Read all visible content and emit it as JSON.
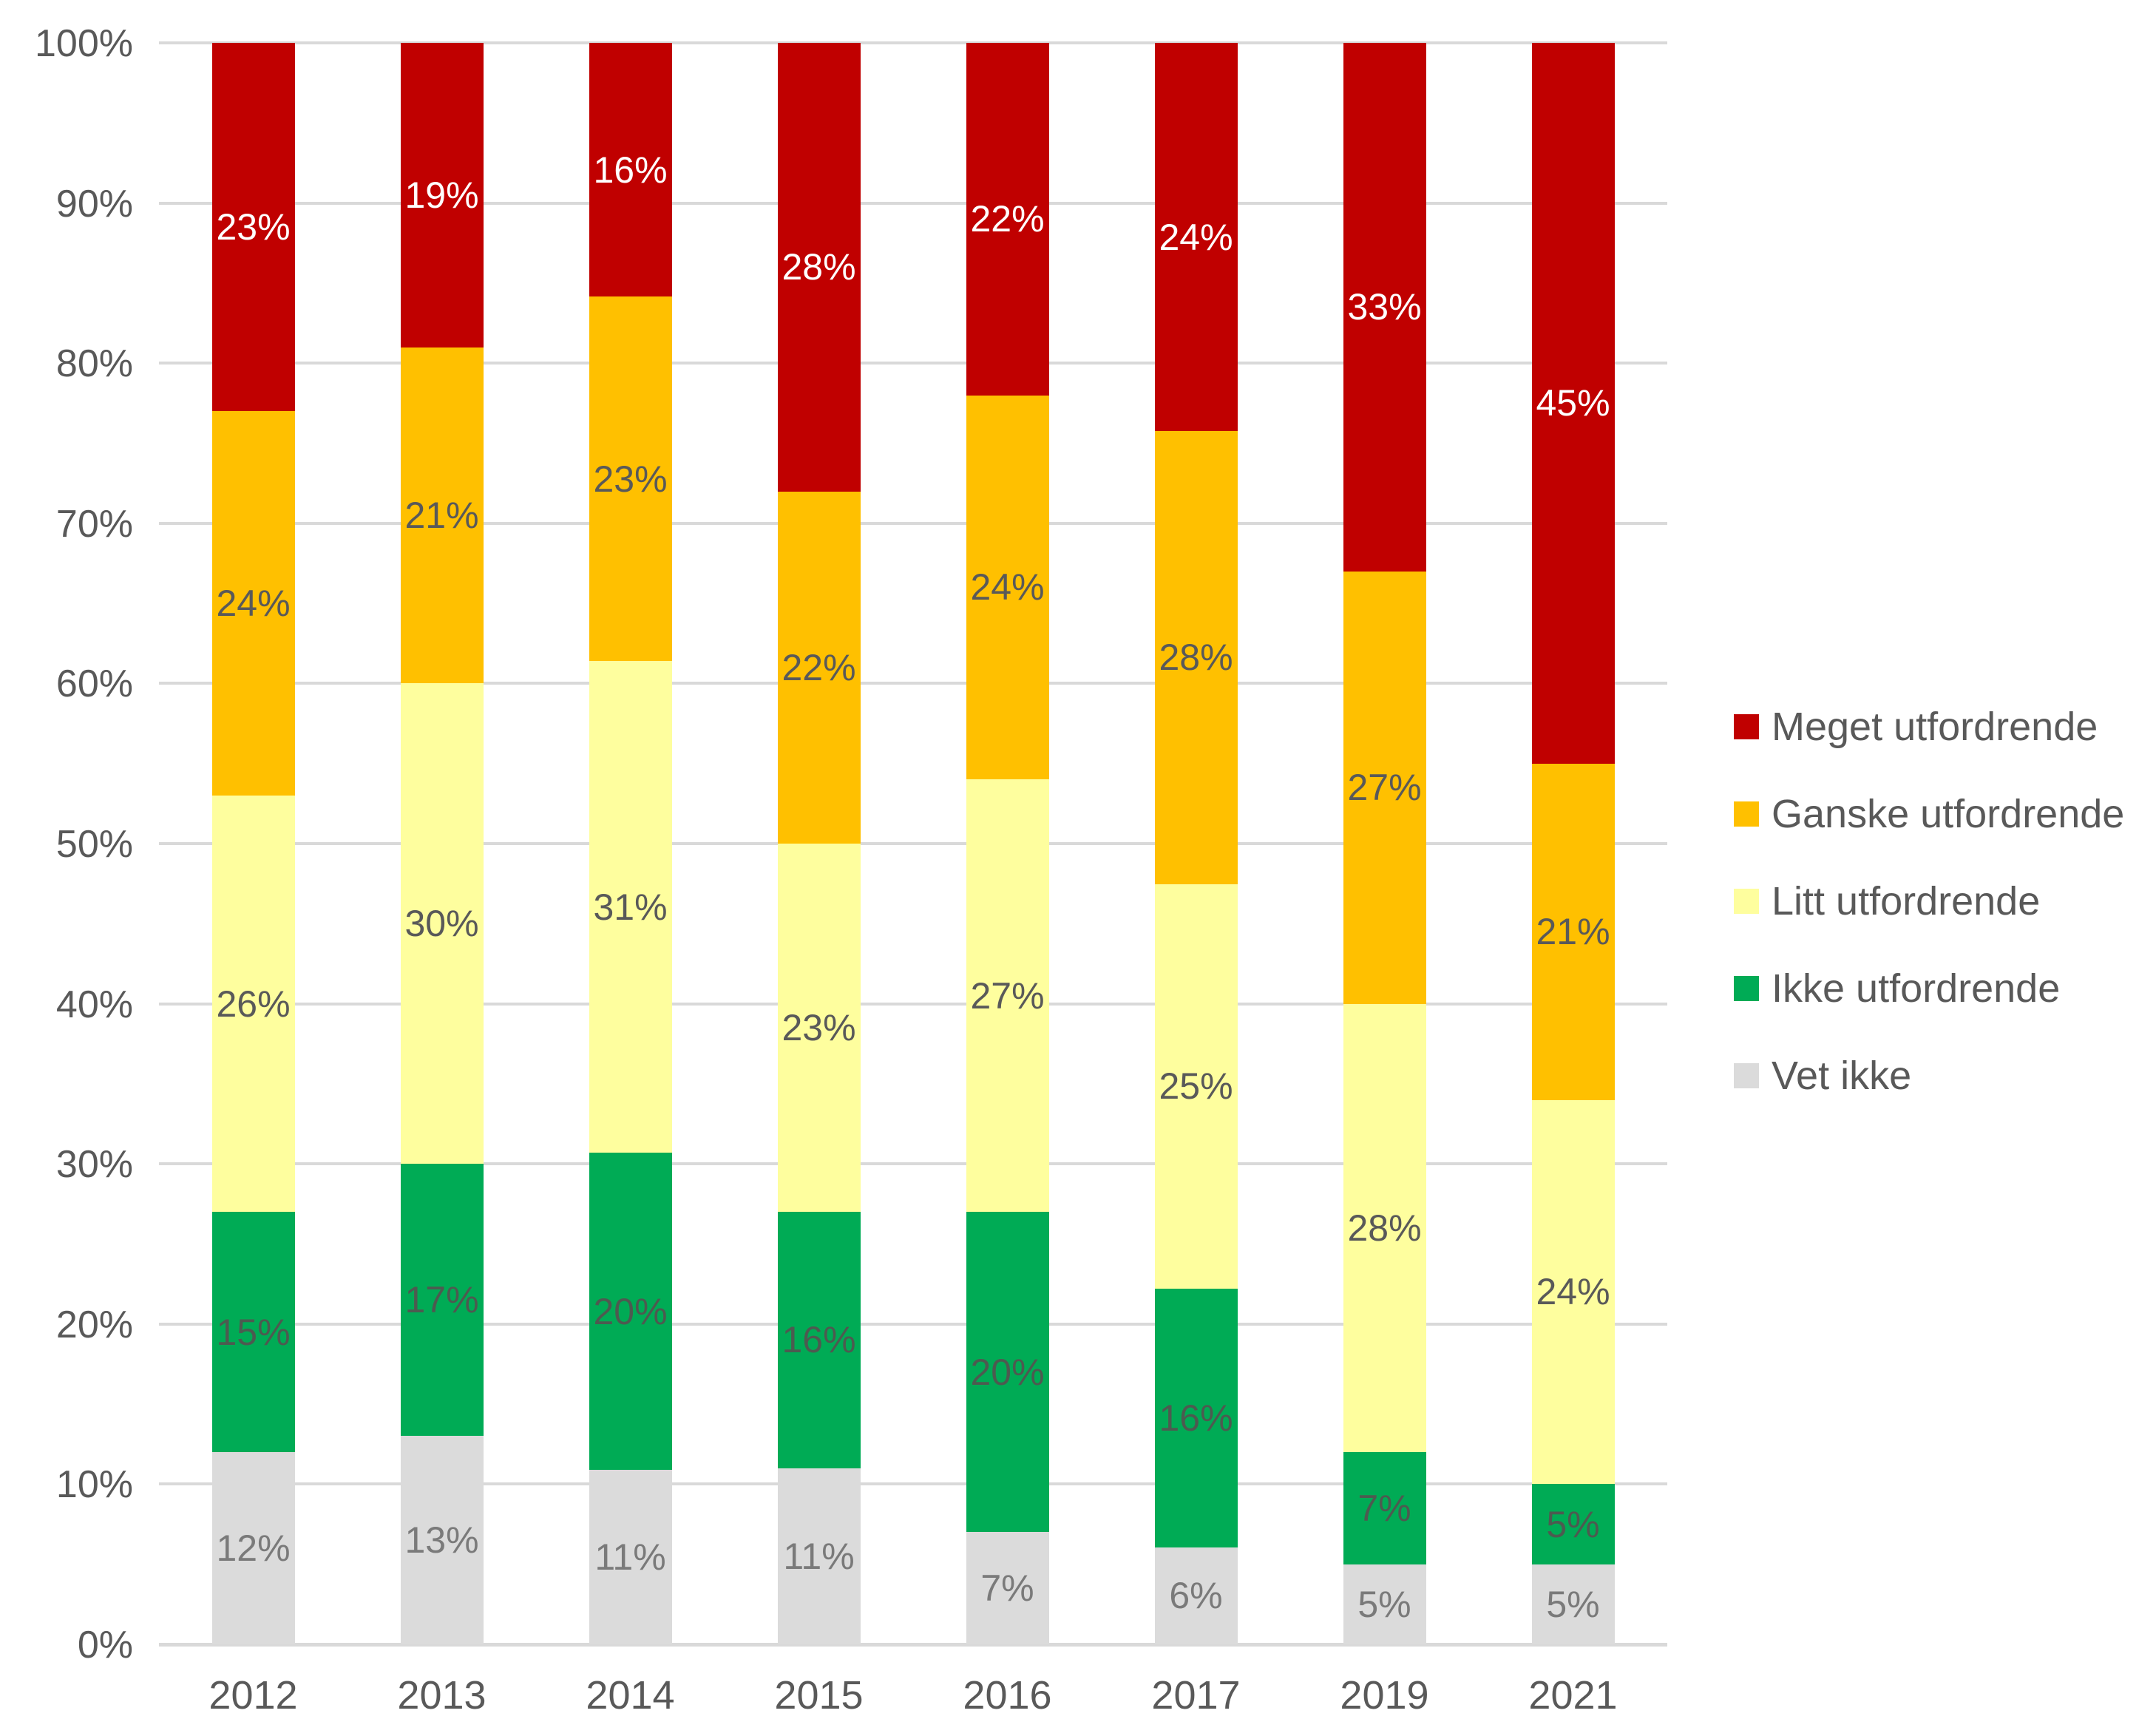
{
  "chart_data": {
    "type": "bar",
    "stacked": true,
    "stacked_100": true,
    "title": "",
    "xlabel": "",
    "ylabel": "",
    "categories": [
      "2012",
      "2013",
      "2014",
      "2015",
      "2016",
      "2017",
      "2019",
      "2021"
    ],
    "series": [
      {
        "name": "Vet ikke",
        "color": "#DBDBDB",
        "label_color": "#7a7a7a",
        "values": [
          12,
          13,
          11,
          11,
          7,
          6,
          5,
          5
        ]
      },
      {
        "name": "Ikke utfordrende",
        "color": "#00AB55",
        "label_color": "#4d5a50",
        "values": [
          15,
          17,
          20,
          16,
          20,
          16,
          7,
          5
        ]
      },
      {
        "name": "Litt utfordrende",
        "color": "#FEFE9E",
        "label_color": "#595959",
        "values": [
          26,
          30,
          31,
          23,
          27,
          25,
          28,
          24
        ]
      },
      {
        "name": "Ganske utfordrende",
        "color": "#FFC000",
        "label_color": "#595959",
        "values": [
          24,
          21,
          23,
          22,
          24,
          28,
          27,
          21
        ]
      },
      {
        "name": "Meget utfordrende",
        "color": "#C00000",
        "label_color": "#FFFFFF",
        "values": [
          23,
          19,
          16,
          28,
          22,
          24,
          33,
          45
        ]
      }
    ],
    "value_suffix": "%",
    "y_axis": {
      "min": 0,
      "max": 100,
      "tick_labels": [
        "0%",
        "10%",
        "20%",
        "30%",
        "40%",
        "50%",
        "60%",
        "70%",
        "80%",
        "90%",
        "100%"
      ],
      "grid": true,
      "grid_color": "#D9D9D9"
    },
    "legend": {
      "position": "right",
      "order_top_to_bottom": [
        "Meget utfordrende",
        "Ganske utfordrende",
        "Litt utfordrende",
        "Ikke utfordrende",
        "Vet ikke"
      ]
    }
  }
}
